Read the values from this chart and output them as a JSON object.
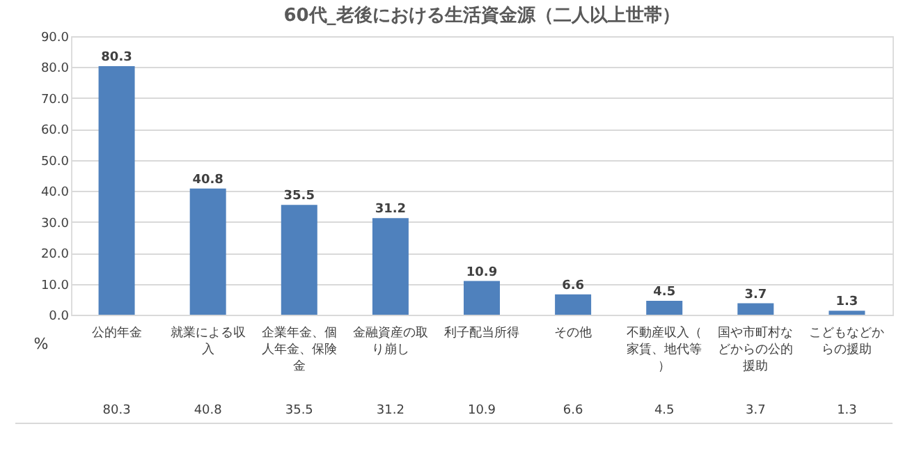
{
  "chart_data": {
    "type": "bar",
    "title": "60代_老後における生活資金源（二人以上世帯）",
    "ylabel": "%",
    "categories": [
      "公的年金",
      "就業による収入",
      "企業年金、個人年金、保険金",
      "金融資産の取り崩し",
      "利子配当所得",
      "その他",
      "不動産収入（家賃、地代等）",
      "国や市町村などからの公的援助",
      "こどもなどからの援助"
    ],
    "values": [
      80.3,
      40.8,
      35.5,
      31.2,
      10.9,
      6.6,
      4.5,
      3.7,
      1.3
    ],
    "color": "#4f81bd",
    "ylim": [
      0,
      90
    ],
    "yticks": [
      {
        "value": 0,
        "label": "0.0"
      },
      {
        "value": 10,
        "label": "10.0"
      },
      {
        "value": 20,
        "label": "20.0"
      },
      {
        "value": 30,
        "label": "30.0"
      },
      {
        "value": 40,
        "label": "40.0"
      },
      {
        "value": 50,
        "label": "50.0"
      },
      {
        "value": 60,
        "label": "60.0"
      },
      {
        "value": 70,
        "label": "70.0"
      },
      {
        "value": 80,
        "label": "80.0"
      },
      {
        "value": 90,
        "label": "90.0"
      }
    ],
    "grid": "y",
    "value_labels": [
      "80.3",
      "40.8",
      "35.5",
      "31.2",
      "10.9",
      "6.6",
      "4.5",
      "3.7",
      "1.3"
    ]
  }
}
